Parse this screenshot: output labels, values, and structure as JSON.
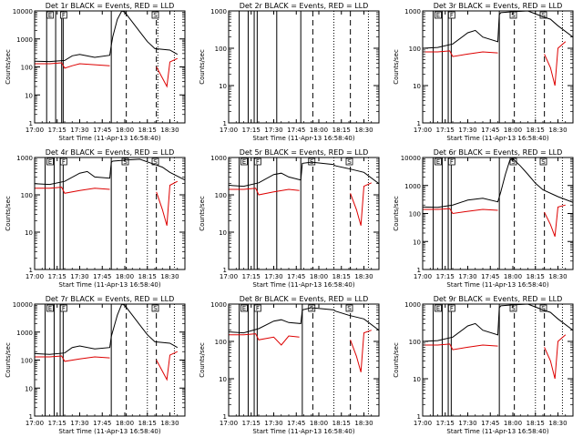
{
  "figure": {
    "xlabel": "Start Time (11-Apr-13 16:58:40)",
    "ylabel": "Counts/sec",
    "colors": {
      "events": "#000000",
      "lld": "#dd0000",
      "axes": "#000000"
    }
  },
  "chart_data": [
    {
      "type": "line",
      "title": "Det 1r BLACK = Events, RED = LLD",
      "ylim": [
        1,
        10000
      ],
      "yscale": "log",
      "yticks": [
        "1",
        "10",
        "100",
        "1000",
        "10000"
      ],
      "xlim": [
        "17:00",
        "18:40"
      ],
      "xticks": [
        "17:00",
        "17:15",
        "17:30",
        "17:45",
        "18:00",
        "18:15",
        "18:30"
      ],
      "solid_vlines": [
        "17:08",
        "17:14",
        "17:18",
        "17:19",
        "17:51"
      ],
      "dashed_vlines": [
        "18:01",
        "18:21"
      ],
      "dotted_vlines": [
        "18:22",
        "18:33"
      ],
      "flags": [
        {
          "x": "17:10",
          "label": "E"
        },
        {
          "x": "17:19",
          "label": "F"
        },
        {
          "x": "18:20",
          "label": "S"
        }
      ],
      "series": [
        {
          "x": [
            "17:00",
            "17:10",
            "17:20",
            "17:25",
            "17:30",
            "17:40",
            "17:50",
            "17:51",
            "17:52",
            "17:55",
            "17:58",
            "18:00",
            "18:05",
            "18:10",
            "18:15",
            "18:20",
            "18:30",
            "18:35"
          ],
          "y": [
            160,
            155,
            170,
            250,
            280,
            220,
            260,
            600,
            1200,
            5000,
            12000,
            9000,
            4000,
            1800,
            800,
            450,
            400,
            280
          ]
        },
        {
          "x": [
            "17:00",
            "17:10",
            "17:18",
            "17:20",
            "17:25",
            "17:30",
            "17:40",
            "17:50",
            "17:52",
            "18:20",
            "18:21",
            "18:25",
            "18:28",
            "18:30",
            "18:35"
          ],
          "y": [
            130,
            130,
            140,
            90,
            110,
            130,
            120,
            110,
            null,
            null,
            100,
            40,
            20,
            150,
            200
          ]
        }
      ]
    },
    {
      "type": "line",
      "title": "Det 2r BLACK = Events, RED = LLD",
      "ylim": [
        1,
        1000
      ],
      "yscale": "log",
      "yticks": [
        "1",
        "10",
        "100",
        "1000"
      ],
      "xlim": [
        "17:00",
        "18:40"
      ],
      "xticks": [
        "17:00",
        "17:15",
        "17:30",
        "17:45",
        "18:00",
        "18:15",
        "18:30"
      ],
      "solid_vlines": [
        "17:07",
        "17:13",
        "17:17",
        "17:19",
        "17:32",
        "17:48"
      ],
      "dashed_vlines": [
        "17:56",
        "18:21"
      ],
      "dotted_vlines": [
        "18:10",
        "18:33"
      ],
      "flags": [],
      "series": []
    },
    {
      "type": "line",
      "title": "Det 3r BLACK = Events, RED = LLD",
      "ylim": [
        1,
        1000
      ],
      "yscale": "log",
      "yticks": [
        "1",
        "10",
        "100",
        "1000"
      ],
      "xlim": [
        "17:00",
        "18:40"
      ],
      "xticks": [
        "17:00",
        "17:15",
        "17:30",
        "17:45",
        "18:00",
        "18:15",
        "18:30"
      ],
      "solid_vlines": [
        "17:07",
        "17:13",
        "17:17",
        "17:19",
        "17:51"
      ],
      "dashed_vlines": [
        "18:01",
        "18:21"
      ],
      "dotted_vlines": [
        "18:15",
        "18:33"
      ],
      "flags": [
        {
          "x": "17:10",
          "label": "E"
        },
        {
          "x": "17:19",
          "label": "F"
        },
        {
          "x": "18:00",
          "label": "S"
        },
        {
          "x": "18:20",
          "label": "S"
        }
      ],
      "series": [
        {
          "x": [
            "17:00",
            "17:10",
            "17:20",
            "17:30",
            "17:35",
            "17:40",
            "17:50",
            "17:51",
            "17:52",
            "18:00",
            "18:10",
            "18:20",
            "18:25",
            "18:30",
            "18:40"
          ],
          "y": [
            100,
            105,
            130,
            260,
            300,
            200,
            150,
            800,
            900,
            950,
            1000,
            700,
            600,
            400,
            200
          ]
        },
        {
          "x": [
            "17:00",
            "17:10",
            "17:18",
            "17:20",
            "17:30",
            "17:40",
            "17:50",
            "17:52",
            "18:20",
            "18:21",
            "18:25",
            "18:28",
            "18:30",
            "18:35"
          ],
          "y": [
            80,
            80,
            85,
            60,
            70,
            80,
            75,
            null,
            null,
            70,
            30,
            10,
            100,
            150
          ]
        }
      ]
    },
    {
      "type": "line",
      "title": "Det 4r BLACK = Events, RED = LLD",
      "ylim": [
        1,
        1000
      ],
      "yscale": "log",
      "yticks": [
        "1",
        "10",
        "100",
        "1000"
      ],
      "xlim": [
        "17:00",
        "18:40"
      ],
      "xticks": [
        "17:00",
        "17:15",
        "17:30",
        "17:45",
        "18:00",
        "18:15",
        "18:30"
      ],
      "solid_vlines": [
        "17:07",
        "17:13",
        "17:17",
        "17:19",
        "17:51"
      ],
      "dashed_vlines": [
        "18:01",
        "18:21"
      ],
      "dotted_vlines": [
        "18:15",
        "18:33"
      ],
      "flags": [
        {
          "x": "17:10",
          "label": "E"
        },
        {
          "x": "17:19",
          "label": "F"
        },
        {
          "x": "18:00",
          "label": "S"
        },
        {
          "x": "18:20",
          "label": "S"
        }
      ],
      "series": [
        {
          "x": [
            "17:00",
            "17:10",
            "17:20",
            "17:30",
            "17:35",
            "17:40",
            "17:50",
            "17:51",
            "17:52",
            "18:00",
            "18:10",
            "18:20",
            "18:25",
            "18:30",
            "18:40"
          ],
          "y": [
            200,
            190,
            230,
            380,
            420,
            300,
            280,
            750,
            800,
            850,
            900,
            650,
            550,
            400,
            250
          ]
        },
        {
          "x": [
            "17:00",
            "17:10",
            "17:18",
            "17:20",
            "17:30",
            "17:40",
            "17:50",
            "17:52",
            "18:20",
            "18:21",
            "18:25",
            "18:28",
            "18:30",
            "18:35"
          ],
          "y": [
            150,
            150,
            160,
            110,
            130,
            150,
            140,
            null,
            null,
            120,
            40,
            15,
            180,
            230
          ]
        }
      ]
    },
    {
      "type": "line",
      "title": "Det 5r BLACK = Events, RED = LLD",
      "ylim": [
        1,
        1000
      ],
      "yscale": "log",
      "yticks": [
        "1",
        "10",
        "100",
        "1000"
      ],
      "xlim": [
        "17:00",
        "18:40"
      ],
      "xticks": [
        "17:00",
        "17:15",
        "17:30",
        "17:45",
        "18:00",
        "18:15",
        "18:30"
      ],
      "solid_vlines": [
        "17:07",
        "17:13",
        "17:17",
        "17:19",
        "17:32",
        "17:48"
      ],
      "dashed_vlines": [
        "17:56",
        "18:21"
      ],
      "dotted_vlines": [
        "18:10",
        "18:33"
      ],
      "flags": [
        {
          "x": "17:10",
          "label": "E"
        },
        {
          "x": "17:19",
          "label": "F"
        },
        {
          "x": "17:55",
          "label": "S"
        },
        {
          "x": "18:20",
          "label": "S"
        }
      ],
      "series": [
        {
          "x": [
            "17:00",
            "17:10",
            "17:20",
            "17:30",
            "17:35",
            "17:40",
            "17:48",
            "17:49",
            "17:55",
            "18:10",
            "18:11",
            "18:20",
            "18:30",
            "18:40"
          ],
          "y": [
            180,
            170,
            210,
            350,
            380,
            300,
            250,
            700,
            750,
            650,
            600,
            500,
            400,
            200
          ]
        },
        {
          "x": [
            "17:00",
            "17:10",
            "17:18",
            "17:20",
            "17:30",
            "17:40",
            "17:47",
            "17:49",
            "18:20",
            "18:21",
            "18:25",
            "18:28",
            "18:30",
            "18:35"
          ],
          "y": [
            140,
            140,
            150,
            100,
            120,
            140,
            130,
            null,
            null,
            110,
            40,
            15,
            170,
            210
          ]
        }
      ]
    },
    {
      "type": "line",
      "title": "Det 6r BLACK = Events, RED = LLD",
      "ylim": [
        1,
        10000
      ],
      "yscale": "log",
      "yticks": [
        "1",
        "10",
        "100",
        "1000",
        "10000"
      ],
      "xlim": [
        "17:00",
        "18:40"
      ],
      "xticks": [
        "17:00",
        "17:15",
        "17:30",
        "17:45",
        "18:00",
        "18:15",
        "18:30"
      ],
      "solid_vlines": [
        "17:07",
        "17:13",
        "17:17",
        "17:19",
        "17:51"
      ],
      "dashed_vlines": [
        "18:01",
        "18:21"
      ],
      "dotted_vlines": [
        "18:15",
        "18:33"
      ],
      "flags": [
        {
          "x": "17:10",
          "label": "E"
        },
        {
          "x": "17:19",
          "label": "F"
        },
        {
          "x": "18:00",
          "label": "S"
        },
        {
          "x": "18:20",
          "label": "S"
        }
      ],
      "series": [
        {
          "x": [
            "17:00",
            "17:10",
            "17:20",
            "17:30",
            "17:40",
            "17:50",
            "17:52",
            "17:55",
            "17:58",
            "18:00",
            "18:05",
            "18:10",
            "18:15",
            "18:20",
            "18:30",
            "18:40"
          ],
          "y": [
            170,
            165,
            200,
            300,
            350,
            260,
            600,
            2500,
            8000,
            9000,
            5000,
            2500,
            1200,
            700,
            400,
            250
          ]
        },
        {
          "x": [
            "17:00",
            "17:10",
            "17:18",
            "17:20",
            "17:30",
            "17:40",
            "17:50",
            "17:52",
            "18:20",
            "18:21",
            "18:25",
            "18:28",
            "18:30",
            "18:35"
          ],
          "y": [
            140,
            140,
            150,
            100,
            120,
            140,
            130,
            null,
            null,
            110,
            40,
            15,
            170,
            200
          ]
        }
      ]
    },
    {
      "type": "line",
      "title": "Det 7r BLACK = Events, RED = LLD",
      "ylim": [
        1,
        10000
      ],
      "yscale": "log",
      "yticks": [
        "1",
        "10",
        "100",
        "1000",
        "10000"
      ],
      "xlim": [
        "17:00",
        "18:40"
      ],
      "xticks": [
        "17:00",
        "17:15",
        "17:30",
        "17:45",
        "18:00",
        "18:15",
        "18:30"
      ],
      "solid_vlines": [
        "17:07",
        "17:13",
        "17:17",
        "17:19",
        "17:51"
      ],
      "dashed_vlines": [
        "18:01",
        "18:21"
      ],
      "dotted_vlines": [
        "18:15",
        "18:33"
      ],
      "flags": [
        {
          "x": "17:10",
          "label": "E"
        },
        {
          "x": "17:19",
          "label": "F"
        },
        {
          "x": "18:20",
          "label": "S"
        }
      ],
      "series": [
        {
          "x": [
            "17:00",
            "17:10",
            "17:20",
            "17:25",
            "17:30",
            "17:40",
            "17:50",
            "17:51",
            "17:55",
            "17:58",
            "18:00",
            "18:05",
            "18:10",
            "18:15",
            "18:20",
            "18:30",
            "18:35"
          ],
          "y": [
            170,
            160,
            180,
            280,
            320,
            250,
            280,
            700,
            4000,
            12000,
            9000,
            4000,
            1800,
            800,
            450,
            400,
            280
          ]
        },
        {
          "x": [
            "17:00",
            "17:10",
            "17:18",
            "17:20",
            "17:30",
            "17:40",
            "17:50",
            "17:52",
            "18:20",
            "18:21",
            "18:25",
            "18:28",
            "18:30",
            "18:35"
          ],
          "y": [
            130,
            130,
            140,
            90,
            110,
            130,
            120,
            null,
            null,
            100,
            40,
            20,
            150,
            200
          ]
        }
      ]
    },
    {
      "type": "line",
      "title": "Det 8r BLACK = Events, RED = LLD",
      "ylim": [
        1,
        1000
      ],
      "yscale": "log",
      "yticks": [
        "1",
        "10",
        "100",
        "1000"
      ],
      "xlim": [
        "17:00",
        "18:40"
      ],
      "xticks": [
        "17:00",
        "17:15",
        "17:30",
        "17:45",
        "18:00",
        "18:15",
        "18:30"
      ],
      "solid_vlines": [
        "17:07",
        "17:13",
        "17:17",
        "17:19",
        "17:49"
      ],
      "dashed_vlines": [
        "17:56",
        "18:21"
      ],
      "dotted_vlines": [
        "18:10",
        "18:33"
      ],
      "flags": [
        {
          "x": "17:10",
          "label": "E"
        },
        {
          "x": "17:19",
          "label": "F"
        },
        {
          "x": "17:55",
          "label": "S"
        },
        {
          "x": "18:20",
          "label": "S"
        }
      ],
      "series": [
        {
          "x": [
            "17:00",
            "17:10",
            "17:20",
            "17:30",
            "17:35",
            "17:40",
            "17:48",
            "17:49",
            "17:55",
            "18:10",
            "18:11",
            "18:20",
            "18:30",
            "18:40"
          ],
          "y": [
            180,
            170,
            220,
            350,
            380,
            320,
            300,
            700,
            800,
            700,
            650,
            500,
            400,
            200
          ]
        },
        {
          "x": [
            "17:00",
            "17:10",
            "17:18",
            "17:20",
            "17:30",
            "17:35",
            "17:40",
            "17:47",
            "17:49",
            "18:20",
            "18:21",
            "18:25",
            "18:28",
            "18:30",
            "18:35"
          ],
          "y": [
            150,
            150,
            160,
            110,
            130,
            80,
            140,
            130,
            null,
            null,
            110,
            40,
            15,
            170,
            200
          ]
        }
      ]
    },
    {
      "type": "line",
      "title": "Det 9r BLACK = Events, RED = LLD",
      "ylim": [
        1,
        1000
      ],
      "yscale": "log",
      "yticks": [
        "1",
        "10",
        "100",
        "1000"
      ],
      "xlim": [
        "17:00",
        "18:40"
      ],
      "xticks": [
        "17:00",
        "17:15",
        "17:30",
        "17:45",
        "18:00",
        "18:15",
        "18:30"
      ],
      "solid_vlines": [
        "17:07",
        "17:13",
        "17:17",
        "17:19",
        "17:51"
      ],
      "dashed_vlines": [
        "18:01",
        "18:21"
      ],
      "dotted_vlines": [
        "18:15",
        "18:33"
      ],
      "flags": [
        {
          "x": "17:10",
          "label": "E"
        },
        {
          "x": "17:19",
          "label": "F"
        },
        {
          "x": "18:00",
          "label": "S"
        },
        {
          "x": "18:20",
          "label": "S"
        }
      ],
      "series": [
        {
          "x": [
            "17:00",
            "17:10",
            "17:20",
            "17:30",
            "17:35",
            "17:40",
            "17:50",
            "17:51",
            "17:52",
            "18:00",
            "18:10",
            "18:20",
            "18:25",
            "18:30",
            "18:40"
          ],
          "y": [
            100,
            105,
            130,
            260,
            300,
            200,
            150,
            800,
            900,
            950,
            1000,
            700,
            600,
            400,
            200
          ]
        },
        {
          "x": [
            "17:00",
            "17:10",
            "17:18",
            "17:20",
            "17:30",
            "17:40",
            "17:50",
            "17:52",
            "18:20",
            "18:21",
            "18:25",
            "18:28",
            "18:30",
            "18:35"
          ],
          "y": [
            80,
            80,
            85,
            60,
            70,
            80,
            75,
            null,
            null,
            70,
            30,
            10,
            100,
            150
          ]
        }
      ]
    }
  ]
}
